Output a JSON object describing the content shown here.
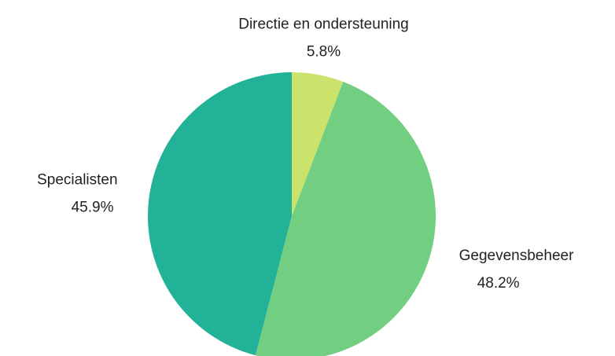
{
  "chart_data": {
    "type": "pie",
    "categories": [
      "Directie en ondersteuning",
      "Gegevensbeheer",
      "Specialisten"
    ],
    "values": [
      5.8,
      48.2,
      45.9
    ],
    "value_labels": [
      "5.8%",
      "48.2%",
      "45.9%"
    ],
    "colors": [
      "#cce36b",
      "#72cf82",
      "#22b297"
    ]
  }
}
